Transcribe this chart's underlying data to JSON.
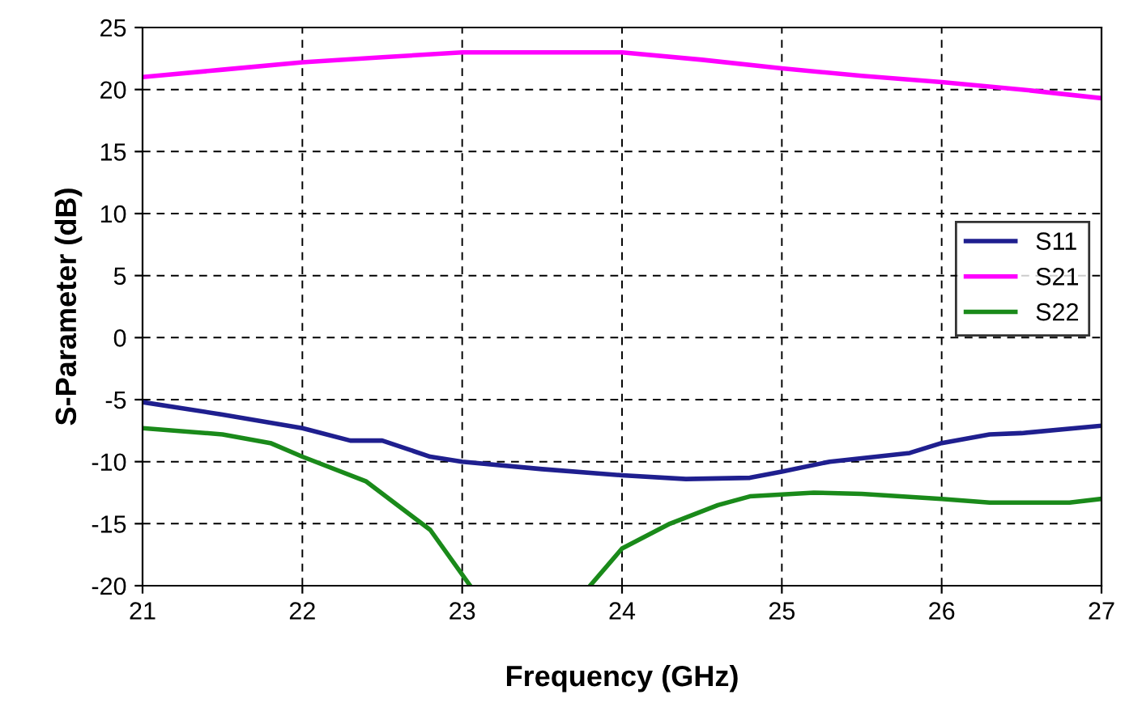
{
  "chart_data": {
    "type": "line",
    "xlabel": "Frequency (GHz)",
    "ylabel": "S-Parameter (dB)",
    "xlim": [
      21,
      27
    ],
    "xticks": [
      21,
      22,
      23,
      24,
      25,
      26,
      27
    ],
    "ylim": [
      -20,
      25
    ],
    "yticks": [
      -20,
      -15,
      -10,
      -5,
      0,
      5,
      10,
      15,
      20,
      25
    ],
    "grid": true,
    "legend": "right",
    "marker": "none",
    "line_style": "solid",
    "series": [
      {
        "name": "S11",
        "color": "#1f1f8f",
        "x": [
          21,
          21.5,
          22,
          22.3,
          22.5,
          22.8,
          23,
          23.5,
          24,
          24.4,
          24.8,
          25,
          25.3,
          25.8,
          26,
          26.3,
          26.5,
          27
        ],
        "values": [
          -5.2,
          -6.2,
          -7.3,
          -8.3,
          -8.3,
          -9.6,
          -10.0,
          -10.6,
          -11.1,
          -11.4,
          -11.3,
          -10.8,
          -10.0,
          -9.3,
          -8.5,
          -7.8,
          -7.7,
          -7.1
        ]
      },
      {
        "name": "S21",
        "color": "#ff00ff",
        "x": [
          21,
          21.5,
          22,
          22.5,
          23,
          23.5,
          24,
          24.5,
          25,
          25.5,
          26,
          26.5,
          27
        ],
        "values": [
          21.0,
          21.6,
          22.2,
          22.6,
          23.0,
          23.0,
          23.0,
          22.4,
          21.7,
          21.1,
          20.6,
          20.0,
          19.3
        ]
      },
      {
        "name": "S22",
        "color": "#1a8a1a",
        "x": [
          21,
          21.5,
          21.8,
          22,
          22.4,
          22.8,
          23.05,
          23.4,
          23.8,
          24.0,
          24.3,
          24.6,
          24.8,
          25.2,
          25.5,
          26,
          26.3,
          26.8,
          27
        ],
        "values": [
          -7.3,
          -7.8,
          -8.5,
          -9.6,
          -11.6,
          -15.5,
          -20,
          null,
          -20,
          -17,
          -15,
          -13.5,
          -12.8,
          -12.5,
          -12.6,
          -13.0,
          -13.3,
          -13.3,
          -13.0
        ]
      }
    ]
  }
}
